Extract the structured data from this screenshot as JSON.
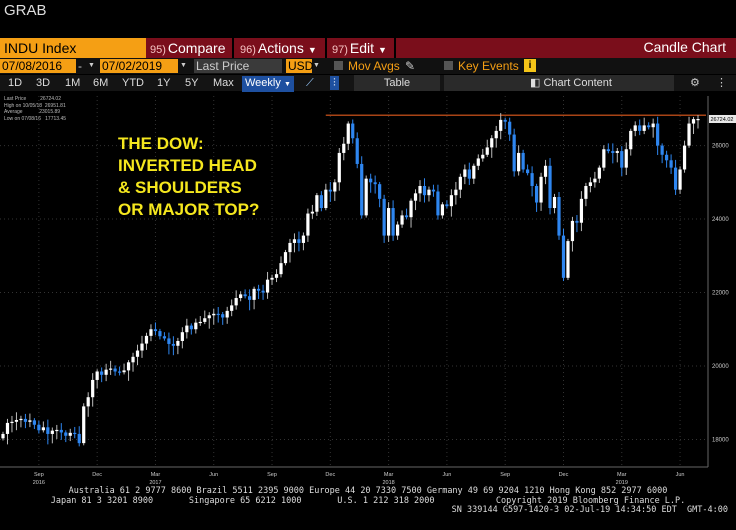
{
  "header": {
    "app_title": "GRAB"
  },
  "toolbar": {
    "ticker": "INDU Index",
    "compare_num": "95)",
    "compare": "Compare",
    "actions_num": "96)",
    "actions": "Actions",
    "edit_num": "97)",
    "edit": "Edit",
    "view_title": "Candle Chart"
  },
  "options": {
    "start_date": "07/08/2016",
    "end_date": "07/02/2019",
    "price_field": "Last Price",
    "currency": "USD",
    "mov_avgs": "Mov Avgs",
    "key_events": "Key Events"
  },
  "periods": {
    "items": [
      "1D",
      "3D",
      "1M",
      "6M",
      "YTD",
      "1Y",
      "5Y",
      "Max"
    ],
    "frequency": "Weekly",
    "table": "Table",
    "chart_content": "Chart Content"
  },
  "chart_legend": {
    "last_price": "Last Price",
    "last_price_val": "26724.02",
    "high": "High on 10/05/18",
    "high_val": "26951.81",
    "average": "Average",
    "average_val": "23015.89",
    "low": "Low on 07/08/16",
    "low_val": "17713.45"
  },
  "annotation": [
    "THE DOW:",
    "INVERTED HEAD",
    "& SHOULDERS",
    "OR MAJOR TOP?"
  ],
  "chart_data": {
    "type": "candlestick",
    "y_ticks": [
      18000,
      20000,
      22000,
      24000,
      26000
    ],
    "ylim": [
      17250,
      27350
    ],
    "last_value_label": "26724.02",
    "resistance_level": 26828,
    "x_ticks": [
      {
        "label": "Sep",
        "index": 8
      },
      {
        "label": "2016",
        "index": 8,
        "year": true
      },
      {
        "label": "Dec",
        "index": 21
      },
      {
        "label": "Mar",
        "index": 34
      },
      {
        "label": "2017",
        "index": 34,
        "year": true
      },
      {
        "label": "Jun",
        "index": 47
      },
      {
        "label": "Sep",
        "index": 60
      },
      {
        "label": "Dec",
        "index": 73
      },
      {
        "label": "Mar",
        "index": 86
      },
      {
        "label": "2018",
        "index": 86,
        "year": true
      },
      {
        "label": "Jun",
        "index": 99
      },
      {
        "label": "Sep",
        "index": 112
      },
      {
        "label": "Dec",
        "index": 125
      },
      {
        "label": "Mar",
        "index": 138
      },
      {
        "label": "2019",
        "index": 138,
        "year": true
      },
      {
        "label": "Jun",
        "index": 151
      }
    ],
    "closes": [
      18150,
      18450,
      18480,
      18530,
      18560,
      18480,
      18520,
      18400,
      18250,
      18330,
      18150,
      18240,
      18260,
      18190,
      18100,
      18180,
      18150,
      17900,
      18900,
      19150,
      19620,
      19850,
      19760,
      19900,
      19930,
      19850,
      19830,
      19880,
      20100,
      20250,
      20420,
      20610,
      20820,
      21000,
      20950,
      20810,
      20750,
      20600,
      20550,
      20680,
      20920,
      21100,
      21000,
      21180,
      21200,
      21300,
      21380,
      21420,
      21410,
      21320,
      21500,
      21650,
      21850,
      21950,
      21900,
      21800,
      22100,
      22050,
      22000,
      22350,
      22400,
      22500,
      22800,
      23100,
      23350,
      23450,
      23350,
      23550,
      24150,
      24200,
      24650,
      24300,
      24800,
      24750,
      25000,
      25800,
      26050,
      26600,
      26200,
      25500,
      24100,
      25100,
      25000,
      24950,
      24550,
      23550,
      24300,
      23550,
      23850,
      24100,
      24050,
      24500,
      24700,
      24900,
      24650,
      24800,
      24750,
      24100,
      24400,
      24350,
      24650,
      24800,
      25150,
      25350,
      25100,
      25450,
      25650,
      25750,
      25950,
      26200,
      26400,
      26700,
      26650,
      26300,
      25300,
      25800,
      25350,
      25250,
      24900,
      24450,
      25150,
      25450,
      24300,
      24600,
      23550,
      22400,
      23400,
      23950,
      23900,
      24550,
      24900,
      25000,
      25100,
      25400,
      25900,
      25850,
      25800,
      25850,
      25400,
      25900,
      26400,
      26550,
      26400,
      26550,
      26500,
      26600,
      26000,
      25750,
      25600,
      25400,
      24800,
      25350,
      26000,
      26600,
      26720,
      26724
    ]
  },
  "footer": {
    "line1": "Australia 61 2 9777 8600 Brazil 5511 2395 9000 Europe 44 20 7330 7500 Germany 49 69 9204 1210 Hong Kong 852 2977 6000",
    "line2": "Japan 81 3 3201 8900       Singapore 65 6212 1000       U.S. 1 212 318 2000            Copyright 2019 Bloomberg Finance L.P.",
    "line3": "SN 339144 G597-1420-3 02-Jul-19 14:34:50 EDT  GMT-4:00"
  },
  "colors": {
    "up": "#ffffff",
    "down": "#2e86f0",
    "resistance": "#e05a1e",
    "annotation": "#f5e71e",
    "accent": "#f59f14",
    "toolbar_bg": "#7a0e1b"
  }
}
